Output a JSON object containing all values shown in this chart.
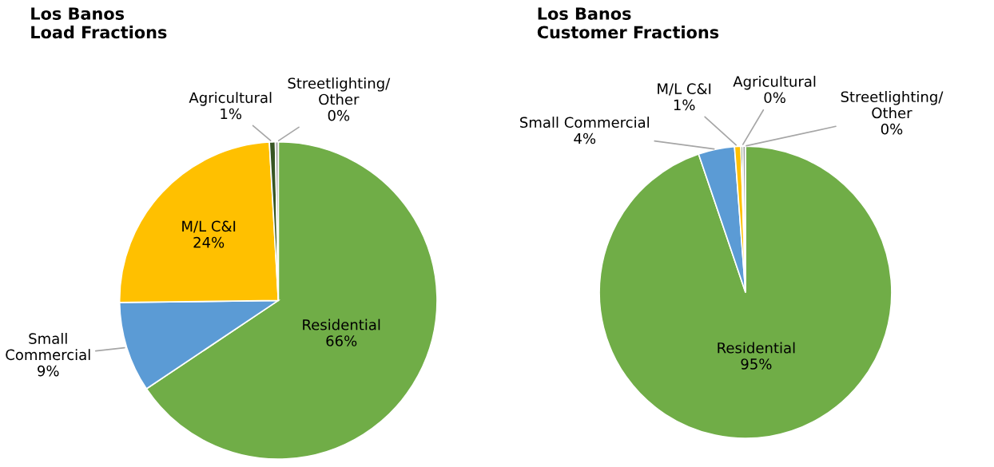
{
  "chart_data": [
    {
      "type": "pie",
      "title": "Los Banos\nLoad Fractions",
      "categories": [
        "Residential",
        "Small\nCommercial",
        "M/L C&I",
        "Agricultural",
        "Streetlighting/\nOther"
      ],
      "values": [
        65.6,
        9.2,
        24.3,
        0.6,
        0.3
      ],
      "value_labels": [
        "66%",
        "9%",
        "24%",
        "1%",
        "0%"
      ],
      "colors": [
        "#70ad47",
        "#5b9bd5",
        "#ffc000",
        "#375623",
        "#a5a5a5"
      ],
      "legend": false
    },
    {
      "type": "pie",
      "title": "Los Banos\nCustomer Fractions",
      "categories": [
        "Residential",
        "Small Commercial",
        "M/L C&I",
        "Agricultural",
        "Streetlighting/\nOther"
      ],
      "values": [
        94.8,
        4.0,
        0.7,
        0.2,
        0.3
      ],
      "value_labels": [
        "95%",
        "4%",
        "1%",
        "0%",
        "0%"
      ],
      "colors": [
        "#70ad47",
        "#5b9bd5",
        "#ffc000",
        "#375623",
        "#a5a5a5"
      ],
      "legend": false
    }
  ]
}
